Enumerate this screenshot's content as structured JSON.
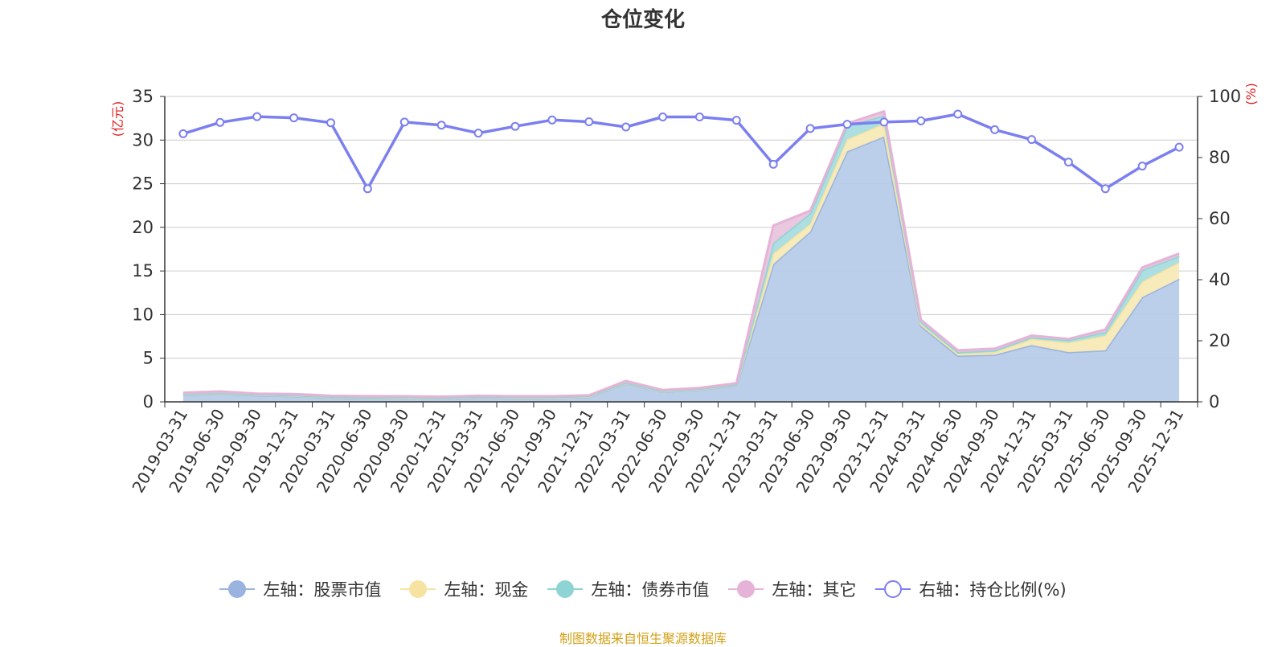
{
  "title": "仓位变化",
  "source_text": "制图数据来自恒生聚源数据库",
  "chart_data": {
    "type": "area",
    "title": "仓位变化",
    "categories": [
      "2019-03-31",
      "2019-06-30",
      "2019-09-30",
      "2019-12-31",
      "2020-03-31",
      "2020-06-30",
      "2020-09-30",
      "2020-12-31",
      "2021-03-31",
      "2021-06-30",
      "2021-09-30",
      "2021-12-31",
      "2022-03-31",
      "2022-06-30",
      "2022-09-30",
      "2022-12-31",
      "2023-03-31",
      "2023-06-30",
      "2023-09-30",
      "2023-12-31",
      "2024-03-31",
      "2024-06-30",
      "2024-09-30",
      "2024-12-31",
      "2025-03-31",
      "2025-06-30",
      "2025-09-30",
      "2025-12-31"
    ],
    "left_axis": {
      "unit": "(亿元)",
      "ylim": [
        0,
        35
      ],
      "ticks": [
        0,
        5,
        10,
        15,
        20,
        25,
        30,
        35
      ]
    },
    "right_axis": {
      "unit": "(%)",
      "ylim": [
        0,
        100
      ],
      "ticks": [
        0,
        20,
        40,
        60,
        80,
        100
      ]
    },
    "stacked_series": [
      {
        "name": "左轴：股票市值",
        "color": "#9ab4df",
        "fill": "#b7cbe9",
        "values": [
          0.8,
          0.9,
          0.75,
          0.65,
          0.5,
          0.4,
          0.45,
          0.4,
          0.5,
          0.45,
          0.45,
          0.55,
          2.1,
          1.15,
          1.4,
          1.9,
          15.8,
          19.5,
          28.7,
          30.4,
          8.7,
          5.3,
          5.4,
          6.5,
          5.7,
          5.9,
          12.0,
          14.1
        ]
      },
      {
        "name": "左轴：现金",
        "color": "#f6e3a1",
        "fill": "#f8eab7",
        "values": [
          0.05,
          0.05,
          0.05,
          0.05,
          0.05,
          0.05,
          0.05,
          0.05,
          0.05,
          0.05,
          0.05,
          0.05,
          0.05,
          0.05,
          0.05,
          0.05,
          1.2,
          0.9,
          1.4,
          1.5,
          0.2,
          0.2,
          0.3,
          0.7,
          1.1,
          1.7,
          1.8,
          1.9
        ]
      },
      {
        "name": "左轴：债券市值",
        "color": "#8fd4d4",
        "fill": "#a9dde0",
        "values": [
          0.05,
          0.05,
          0.05,
          0.05,
          0.05,
          0.05,
          0.05,
          0.05,
          0.05,
          0.05,
          0.05,
          0.05,
          0.05,
          0.05,
          0.05,
          0.05,
          1.2,
          1.2,
          1.5,
          0.9,
          0.3,
          0.2,
          0.2,
          0.2,
          0.3,
          0.4,
          1.3,
          0.7
        ]
      },
      {
        "name": "左轴：其它",
        "color": "#e6b3d8",
        "fill": "#e9c5dd",
        "values": [
          0.15,
          0.2,
          0.1,
          0.15,
          0.1,
          0.15,
          0.1,
          0.1,
          0.1,
          0.1,
          0.1,
          0.1,
          0.2,
          0.1,
          0.1,
          0.15,
          2.0,
          0.3,
          0.3,
          0.5,
          0.2,
          0.2,
          0.2,
          0.2,
          0.1,
          0.3,
          0.3,
          0.3
        ]
      }
    ],
    "line_series": {
      "name": "右轴：持仓比例(%)",
      "color": "#7b7ff0",
      "values": [
        87.8,
        91.5,
        93.4,
        93.0,
        91.4,
        69.8,
        91.6,
        90.6,
        88.0,
        90.2,
        92.3,
        91.7,
        90.0,
        93.3,
        93.3,
        92.2,
        77.8,
        89.5,
        90.9,
        91.6,
        92.0,
        94.2,
        89.1,
        85.9,
        78.5,
        69.8,
        77.2,
        83.4
      ]
    },
    "legend": [
      {
        "name": "左轴：股票市值",
        "color": "#9ab4df",
        "hollow": false
      },
      {
        "name": "左轴：现金",
        "color": "#f6e3a1",
        "hollow": false
      },
      {
        "name": "左轴：债券市值",
        "color": "#8fd4d4",
        "hollow": false
      },
      {
        "name": "左轴：其它",
        "color": "#e6b3d8",
        "hollow": false
      },
      {
        "name": "右轴：持仓比例(%)",
        "color": "#7b7ff0",
        "hollow": true
      }
    ],
    "colors": {
      "axis": "#333333",
      "grid": "#cccccc",
      "unit": "#e02020",
      "source": "#d4a017"
    }
  }
}
